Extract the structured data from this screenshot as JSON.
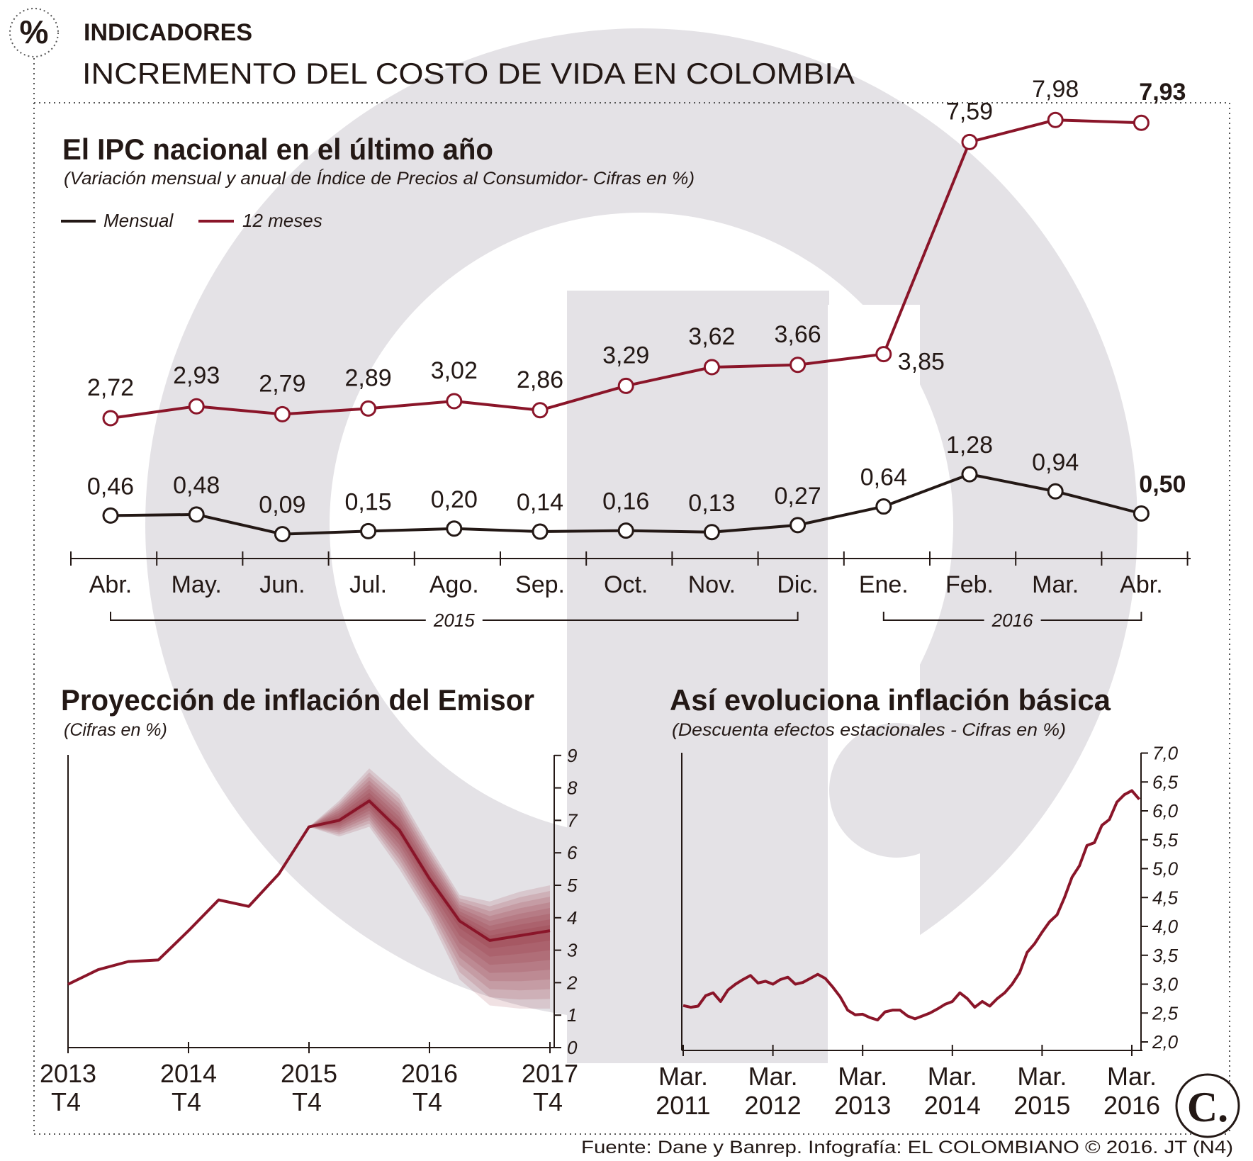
{
  "header": {
    "icon_symbol": "%",
    "section": "INDICADORES",
    "title": "INCREMENTO DEL COSTO DE VIDA EN COLOMBIA"
  },
  "colors": {
    "ink": "#231815",
    "wine": "#8a1529",
    "watermark": "#e4e2e6",
    "dots": "#555555"
  },
  "chart_data": [
    {
      "id": "ipc",
      "type": "line",
      "title": "El IPC nacional en el último año",
      "subtitle": "(Variación mensual y anual de Índice de Precios al Consumidor- Cifras en %)",
      "categories": [
        "Abr.",
        "May.",
        "Jun.",
        "Jul.",
        "Ago.",
        "Sep.",
        "Oct.",
        "Nov.",
        "Dic.",
        "Ene.",
        "Feb.",
        "Mar.",
        "Abr."
      ],
      "years": [
        {
          "label": "2015",
          "from": 0,
          "to": 8
        },
        {
          "label": "2016",
          "from": 9,
          "to": 12
        }
      ],
      "series": [
        {
          "name": "Mensual",
          "color": "#231815",
          "values": [
            0.46,
            0.48,
            0.09,
            0.15,
            0.2,
            0.14,
            0.16,
            0.13,
            0.27,
            0.64,
            1.28,
            0.94,
            0.5
          ],
          "labels": [
            "0,46",
            "0,48",
            "0,09",
            "0,15",
            "0,20",
            "0,14",
            "0,16",
            "0,13",
            "0,27",
            "0,64",
            "1,28",
            "0,94",
            "0,50"
          ]
        },
        {
          "name": "12 meses",
          "color": "#8a1529",
          "values": [
            2.72,
            2.93,
            2.79,
            2.89,
            3.02,
            2.86,
            3.29,
            3.62,
            3.66,
            3.85,
            7.59,
            7.98,
            7.93
          ],
          "labels": [
            "2,72",
            "2,93",
            "2,79",
            "2,89",
            "3,02",
            "2,86",
            "3,29",
            "3,62",
            "3,66",
            "3,85",
            "7,59",
            "7,98",
            "7,93"
          ]
        }
      ]
    },
    {
      "id": "proj",
      "type": "area",
      "title": "Proyección de inflación del Emisor",
      "subtitle": "(Cifras en %)",
      "ylim": [
        0,
        9
      ],
      "yticks": [
        "0",
        "1",
        "2",
        "3",
        "4",
        "5",
        "6",
        "7",
        "8",
        "9"
      ],
      "xticks": [
        {
          "year": "2013",
          "q": "T4",
          "t": 0
        },
        {
          "year": "2014",
          "q": "T4",
          "t": 4
        },
        {
          "year": "2015",
          "q": "T4",
          "t": 8
        },
        {
          "year": "2016",
          "q": "T4",
          "t": 12
        },
        {
          "year": "2017",
          "q": "T4",
          "t": 16
        }
      ],
      "history": {
        "t": [
          0,
          1,
          2,
          3,
          4,
          5,
          6,
          7,
          8
        ],
        "values": [
          1.95,
          2.4,
          2.65,
          2.7,
          3.6,
          4.55,
          4.35,
          5.35,
          6.8
        ]
      },
      "forecast": {
        "t": [
          8,
          9,
          10,
          11,
          12,
          13,
          14,
          15,
          16
        ],
        "values": [
          6.8,
          7.0,
          7.6,
          6.7,
          5.2,
          3.9,
          3.3,
          3.45,
          3.6
        ],
        "upper": [
          6.8,
          7.6,
          8.6,
          7.8,
          6.2,
          4.7,
          4.5,
          4.8,
          5.0
        ],
        "lower": [
          6.8,
          6.5,
          6.8,
          5.5,
          4.0,
          2.1,
          1.3,
          1.2,
          1.2
        ]
      }
    },
    {
      "id": "basic",
      "type": "line",
      "title": "Así evoluciona inflación básica",
      "subtitle": "(Descuenta efectos estacionales - Cifras en %)",
      "ylim": [
        2.0,
        7.0
      ],
      "yticks": [
        "2,0",
        "2,5",
        "3,0",
        "3,5",
        "4,0",
        "4,5",
        "5,0",
        "5,5",
        "6,0",
        "6,5",
        "7,0"
      ],
      "xticks": [
        {
          "label": "Mar.",
          "year": "2011",
          "month": 0
        },
        {
          "label": "Mar.",
          "year": "2012",
          "month": 12
        },
        {
          "label": "Mar.",
          "year": "2013",
          "month": 24
        },
        {
          "label": "Mar.",
          "year": "2014",
          "month": 36
        },
        {
          "label": "Mar.",
          "year": "2015",
          "month": 48
        },
        {
          "label": "Mar.",
          "year": "2016",
          "month": 60
        }
      ],
      "series": [
        {
          "name": "Inflación básica",
          "color": "#8a1529",
          "months": [
            0,
            1,
            2,
            3,
            4,
            5,
            6,
            7,
            8,
            9,
            10,
            11,
            12,
            13,
            14,
            15,
            16,
            17,
            18,
            19,
            20,
            21,
            22,
            23,
            24,
            25,
            26,
            27,
            28,
            29,
            30,
            31,
            32,
            33,
            34,
            35,
            36,
            37,
            38,
            39,
            40,
            41,
            42,
            43,
            44,
            45,
            46,
            47,
            48,
            49,
            50,
            51,
            52,
            53,
            54,
            55,
            56,
            57,
            58,
            59,
            60,
            61
          ],
          "values": [
            2.63,
            2.6,
            2.62,
            2.8,
            2.85,
            2.7,
            2.9,
            3.0,
            3.08,
            3.15,
            3.02,
            3.05,
            3.0,
            3.08,
            3.12,
            3.0,
            3.03,
            3.1,
            3.17,
            3.1,
            2.95,
            2.78,
            2.55,
            2.47,
            2.48,
            2.42,
            2.38,
            2.52,
            2.55,
            2.55,
            2.45,
            2.4,
            2.45,
            2.5,
            2.57,
            2.65,
            2.7,
            2.85,
            2.75,
            2.6,
            2.7,
            2.62,
            2.75,
            2.85,
            3.0,
            3.2,
            3.55,
            3.7,
            3.9,
            4.08,
            4.2,
            4.5,
            4.85,
            5.05,
            5.4,
            5.45,
            5.75,
            5.85,
            6.15,
            6.28,
            6.35,
            6.2
          ]
        }
      ]
    }
  ],
  "footer": {
    "source": "Fuente: Dane y Banrep. Infografía: EL COLOMBIANO © 2016. JT (N4)",
    "logo_letter": "C."
  }
}
